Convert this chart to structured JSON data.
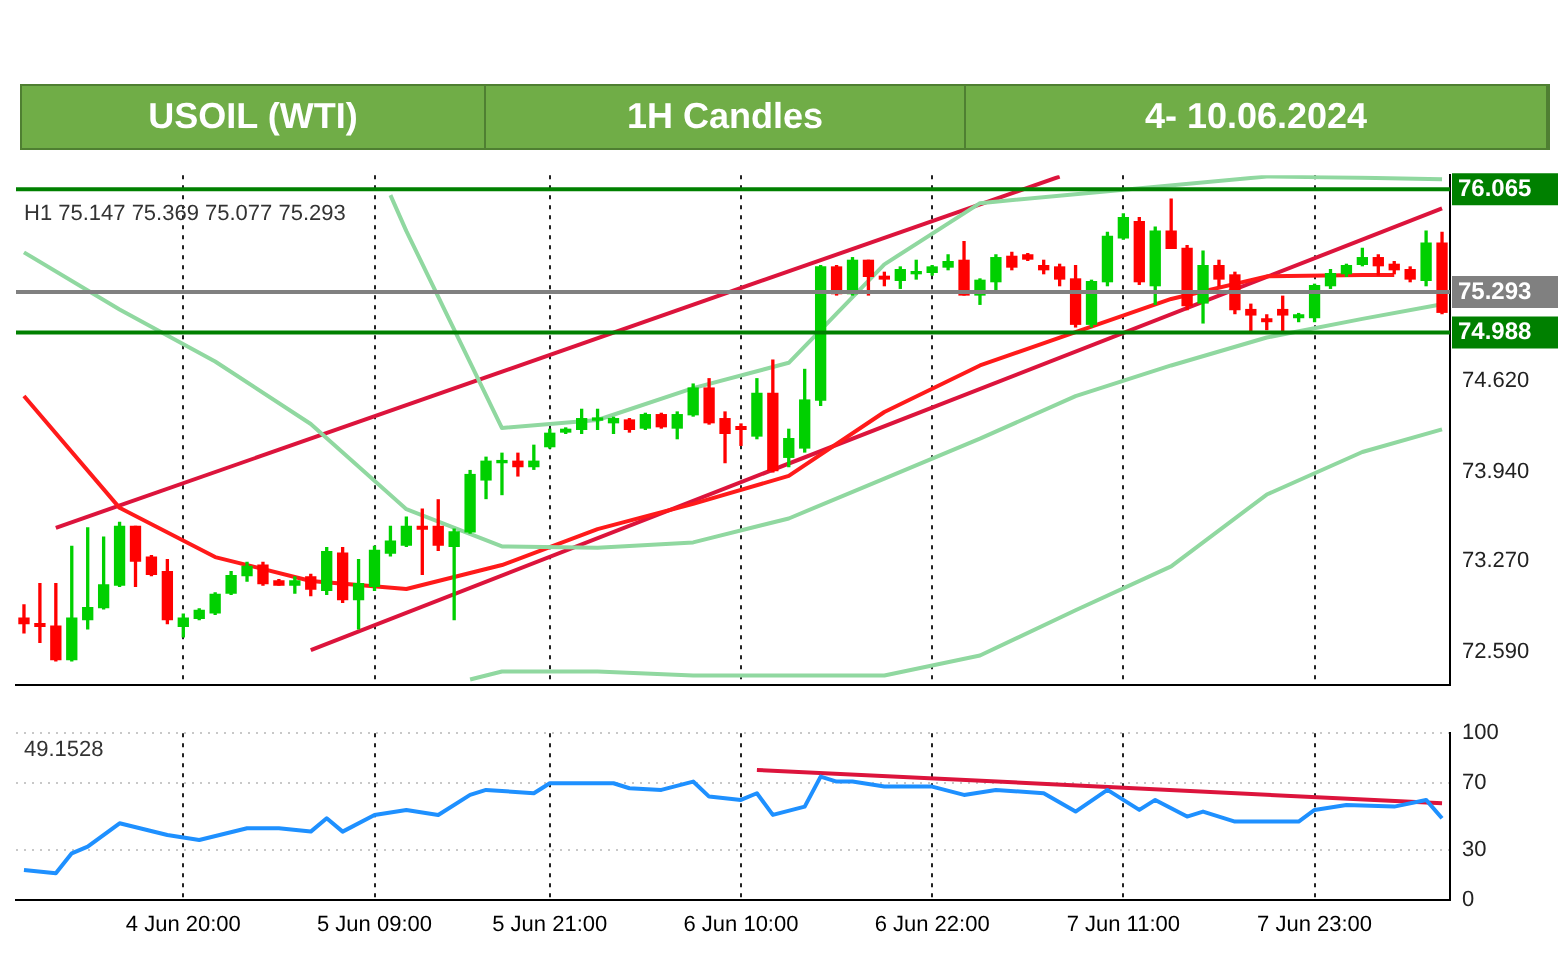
{
  "chart_data": [
    {
      "type": "candlestick",
      "title": "USOIL (WTI)",
      "subtitle": "1H Candles",
      "annotations": [
        "4- 10.06.2024",
        "H1 75.147 75.369 75.077 75.293"
      ],
      "categories": [
        null,
        null,
        null,
        null,
        null,
        null,
        null,
        null,
        null,
        null,
        null,
        null,
        null,
        null,
        null,
        null,
        null,
        null,
        null,
        null,
        null,
        null,
        null,
        null,
        null,
        null,
        null,
        null,
        null,
        null,
        null,
        null,
        null,
        null,
        null,
        null,
        null,
        null,
        null,
        null,
        null,
        null,
        null,
        null,
        null,
        null,
        null,
        null,
        null,
        null,
        null,
        null,
        null,
        null,
        null,
        null,
        null,
        null,
        null,
        null,
        null,
        null,
        null,
        null,
        null,
        null,
        null,
        null,
        null,
        null,
        null,
        null,
        null,
        null,
        null,
        null,
        null,
        null,
        null,
        null,
        null,
        null,
        null,
        null,
        null,
        null,
        null,
        null,
        null,
        null
      ],
      "ohlc": [
        [
          72.84,
          72.94,
          72.73,
          72.8
        ],
        [
          72.8,
          73.1,
          72.66,
          72.78
        ],
        [
          72.78,
          73.1,
          72.52,
          72.53
        ],
        [
          72.53,
          73.38,
          72.52,
          72.84
        ],
        [
          72.83,
          73.52,
          72.76,
          72.92
        ],
        [
          72.92,
          73.45,
          72.91,
          73.09
        ],
        [
          73.09,
          73.56,
          73.08,
          73.53
        ],
        [
          73.53,
          73.53,
          73.08,
          73.27
        ],
        [
          73.3,
          73.31,
          73.16,
          73.17
        ],
        [
          73.19,
          73.28,
          72.8,
          72.83
        ],
        [
          72.78,
          72.87,
          72.7,
          72.84
        ],
        [
          72.84,
          72.91,
          72.83,
          72.9
        ],
        [
          72.88,
          73.03,
          72.87,
          73.02
        ],
        [
          73.03,
          73.19,
          73.02,
          73.16
        ],
        [
          73.16,
          73.26,
          73.12,
          73.23
        ],
        [
          73.24,
          73.26,
          73.09,
          73.1
        ],
        [
          73.12,
          73.13,
          73.09,
          73.09
        ],
        [
          73.09,
          73.15,
          73.03,
          73.12
        ],
        [
          73.15,
          73.17,
          73.01,
          73.06
        ],
        [
          73.05,
          73.37,
          73.02,
          73.34
        ],
        [
          73.33,
          73.37,
          72.96,
          72.98
        ],
        [
          72.98,
          73.28,
          72.76,
          73.1
        ],
        [
          73.08,
          73.38,
          73.05,
          73.35
        ],
        [
          73.33,
          73.53,
          73.31,
          73.42
        ],
        [
          73.39,
          73.6,
          73.38,
          73.53
        ],
        [
          73.53,
          73.66,
          73.17,
          73.51
        ],
        [
          73.53,
          73.73,
          73.35,
          73.39
        ],
        [
          73.38,
          73.51,
          72.83,
          73.49
        ],
        [
          73.49,
          73.95,
          73.48,
          73.92
        ],
        [
          73.88,
          74.05,
          73.74,
          74.02
        ],
        [
          74.01,
          74.08,
          73.77,
          74.02
        ],
        [
          74.02,
          74.08,
          73.91,
          73.98
        ],
        [
          73.98,
          74.14,
          73.96,
          74.02
        ],
        [
          74.13,
          74.26,
          74.12,
          74.23
        ],
        [
          74.24,
          74.27,
          74.23,
          74.26
        ],
        [
          74.26,
          74.41,
          74.23,
          74.34
        ],
        [
          74.33,
          74.41,
          74.26,
          74.34
        ],
        [
          74.31,
          74.35,
          74.23,
          74.34
        ],
        [
          74.33,
          74.34,
          74.24,
          74.26
        ],
        [
          74.27,
          74.38,
          74.26,
          74.37
        ],
        [
          74.37,
          74.38,
          74.27,
          74.28
        ],
        [
          74.27,
          74.39,
          74.19,
          74.37
        ],
        [
          74.37,
          74.6,
          74.36,
          74.57
        ],
        [
          74.57,
          74.64,
          74.3,
          74.31
        ],
        [
          74.34,
          74.39,
          74.01,
          74.23
        ],
        [
          74.28,
          74.3,
          74.14,
          74.26
        ],
        [
          74.21,
          74.64,
          74.19,
          74.53
        ],
        [
          74.53,
          74.78,
          73.94,
          73.95
        ],
        [
          74.05,
          74.26,
          73.98,
          74.19
        ],
        [
          74.12,
          74.71,
          74.09,
          74.48
        ],
        [
          74.48,
          75.49,
          74.44,
          75.48
        ],
        [
          75.48,
          75.49,
          75.27,
          75.28
        ],
        [
          75.28,
          75.55,
          75.27,
          75.53
        ],
        [
          75.53,
          75.53,
          75.27,
          75.41
        ],
        [
          75.41,
          75.44,
          75.34,
          75.39
        ],
        [
          75.38,
          75.48,
          75.32,
          75.46
        ],
        [
          75.43,
          75.53,
          75.39,
          75.44
        ],
        [
          75.44,
          75.49,
          75.42,
          75.48
        ],
        [
          75.48,
          75.57,
          75.46,
          75.52
        ],
        [
          75.53,
          75.67,
          75.27,
          75.27
        ],
        [
          75.27,
          75.39,
          75.2,
          75.38
        ],
        [
          75.37,
          75.57,
          75.3,
          75.55
        ],
        [
          75.56,
          75.59,
          75.46,
          75.48
        ],
        [
          75.57,
          75.58,
          75.53,
          75.54
        ],
        [
          75.49,
          75.53,
          75.43,
          75.46
        ],
        [
          75.48,
          75.5,
          75.34,
          75.39
        ],
        [
          75.39,
          75.49,
          75.03,
          75.05
        ],
        [
          75.05,
          75.38,
          75.03,
          75.37
        ],
        [
          75.37,
          75.74,
          75.34,
          75.71
        ],
        [
          75.7,
          75.88,
          75.69,
          75.85
        ],
        [
          75.82,
          75.85,
          75.35,
          75.37
        ],
        [
          75.34,
          75.78,
          75.2,
          75.75
        ],
        [
          75.75,
          75.99,
          75.62,
          75.62
        ],
        [
          75.62,
          75.64,
          75.16,
          75.19
        ],
        [
          75.21,
          75.6,
          75.06,
          75.49
        ],
        [
          75.49,
          75.53,
          75.34,
          75.39
        ],
        [
          75.42,
          75.44,
          75.13,
          75.16
        ],
        [
          75.16,
          75.2,
          74.99,
          75.12
        ],
        [
          75.09,
          75.12,
          75.01,
          75.07
        ],
        [
          75.16,
          75.26,
          74.99,
          75.12
        ],
        [
          75.1,
          75.13,
          75.07,
          75.12
        ],
        [
          75.1,
          75.35,
          75.07,
          75.34
        ],
        [
          75.34,
          75.46,
          75.32,
          75.43
        ],
        [
          75.43,
          75.5,
          75.41,
          75.49
        ],
        [
          75.5,
          75.62,
          75.49,
          75.55
        ],
        [
          75.55,
          75.57,
          75.42,
          75.49
        ],
        [
          75.5,
          75.52,
          75.43,
          75.46
        ],
        [
          75.46,
          75.48,
          75.37,
          75.39
        ],
        [
          75.38,
          75.75,
          75.34,
          75.66
        ],
        [
          75.66,
          75.74,
          75.13,
          75.14
        ]
      ],
      "series": [
        {
          "type": "line",
          "color": "#90d8a0",
          "values": [
            75.59,
            null,
            null,
            null,
            null,
            null,
            75.16,
            null,
            null,
            null,
            null,
            null,
            74.77,
            null,
            null,
            null,
            null,
            null,
            74.3,
            null,
            null,
            null,
            null,
            null,
            73.66,
            null,
            null,
            null,
            null,
            null,
            73.38,
            null,
            null,
            null,
            null,
            null,
            73.37,
            null,
            null,
            null,
            null,
            null,
            73.41,
            null,
            null,
            null,
            null,
            null,
            73.59,
            null,
            null,
            null,
            null,
            null,
            73.89,
            null,
            null,
            null,
            null,
            null,
            74.19,
            null,
            null,
            null,
            null,
            null,
            74.51,
            null,
            null,
            null,
            null,
            null,
            74.74,
            null,
            null,
            null,
            null,
            null,
            74.95,
            null,
            null,
            null,
            null,
            null,
            75.09,
            null,
            null,
            null,
            null,
            75.2
          ]
        },
        {
          "type": "line",
          "color": "#90d8a0",
          "values": [
            null,
            null,
            null,
            null,
            null,
            null,
            null,
            null,
            null,
            null,
            null,
            null,
            null,
            null,
            null,
            null,
            null,
            null,
            null,
            null,
            null,
            null,
            null,
            76.02,
            75.75,
            null,
            null,
            null,
            null,
            null,
            74.27,
            null,
            null,
            null,
            null,
            null,
            74.33,
            null,
            null,
            null,
            null,
            null,
            74.57,
            null,
            null,
            null,
            null,
            null,
            74.76,
            null,
            null,
            null,
            null,
            null,
            75.5,
            null,
            null,
            null,
            null,
            null,
            75.96,
            null,
            null,
            null,
            null,
            null,
            null,
            null,
            null,
            null,
            null,
            null,
            null,
            null,
            null,
            null,
            null,
            null,
            76.16,
            null,
            null,
            null,
            null,
            null,
            76.15,
            null,
            null,
            null,
            null,
            76.14
          ]
        },
        {
          "type": "line",
          "color": "#90d8a0",
          "values": [
            null,
            null,
            null,
            null,
            null,
            null,
            null,
            null,
            null,
            null,
            null,
            null,
            null,
            null,
            null,
            null,
            null,
            null,
            null,
            null,
            null,
            null,
            null,
            null,
            null,
            null,
            null,
            null,
            72.38,
            null,
            72.44,
            null,
            null,
            null,
            null,
            null,
            72.44,
            null,
            null,
            null,
            null,
            null,
            72.41,
            null,
            null,
            null,
            null,
            null,
            72.41,
            null,
            null,
            null,
            null,
            null,
            72.41,
            null,
            null,
            null,
            null,
            null,
            72.56,
            null,
            null,
            null,
            null,
            null,
            72.9,
            null,
            null,
            null,
            null,
            null,
            73.23,
            null,
            null,
            null,
            null,
            null,
            73.77,
            null,
            null,
            null,
            null,
            null,
            74.09,
            null,
            null,
            null,
            null,
            74.26
          ]
        },
        {
          "type": "line",
          "color": "#ff1a1a",
          "values": [
            74.51,
            null,
            null,
            null,
            null,
            null,
            73.67,
            null,
            null,
            null,
            null,
            null,
            73.3,
            null,
            null,
            null,
            null,
            null,
            73.12,
            null,
            null,
            null,
            null,
            null,
            73.06,
            null,
            null,
            null,
            null,
            null,
            73.24,
            null,
            null,
            null,
            null,
            null,
            73.51,
            null,
            null,
            null,
            null,
            null,
            73.7,
            null,
            null,
            null,
            null,
            null,
            73.91,
            null,
            null,
            null,
            null,
            null,
            74.39,
            null,
            null,
            null,
            null,
            null,
            74.74,
            null,
            null,
            null,
            null,
            null,
            74.99,
            null,
            null,
            null,
            null,
            null,
            75.24,
            null,
            null,
            null,
            null,
            null,
            75.41,
            null,
            null,
            null,
            null,
            null,
            75.42,
            null,
            75.42,
            null,
            null,
            null
          ]
        },
        {
          "type": "line",
          "color": "#dc143c",
          "values": [
            null,
            null,
            73.52,
            null,
            null,
            null,
            null,
            null,
            null,
            null,
            null,
            null,
            null,
            null,
            null,
            null,
            null,
            null,
            null,
            null,
            null,
            null,
            null,
            null,
            null,
            null,
            null,
            null,
            null,
            null,
            null,
            null,
            null,
            null,
            null,
            null,
            null,
            null,
            null,
            null,
            null,
            null,
            null,
            null,
            null,
            null,
            null,
            null,
            null,
            null,
            null,
            null,
            null,
            null,
            null,
            null,
            null,
            null,
            null,
            null,
            null,
            null,
            null,
            null,
            null,
            76.16,
            null,
            null,
            null,
            null,
            null,
            null,
            null,
            null,
            null,
            null,
            null,
            null,
            null,
            null,
            null,
            null,
            null,
            null,
            null,
            null,
            null,
            null,
            null,
            null
          ]
        },
        {
          "type": "line",
          "color": "#dc143c",
          "values": [
            null,
            null,
            null,
            null,
            null,
            null,
            null,
            null,
            null,
            null,
            null,
            null,
            null,
            null,
            null,
            null,
            null,
            null,
            72.6,
            null,
            null,
            null,
            null,
            null,
            null,
            null,
            null,
            null,
            null,
            null,
            null,
            null,
            null,
            null,
            null,
            null,
            null,
            null,
            null,
            null,
            null,
            null,
            null,
            null,
            null,
            null,
            null,
            null,
            null,
            null,
            null,
            null,
            null,
            null,
            null,
            null,
            null,
            null,
            null,
            null,
            null,
            null,
            null,
            null,
            null,
            null,
            null,
            null,
            null,
            null,
            null,
            null,
            null,
            null,
            null,
            null,
            null,
            null,
            null,
            null,
            null,
            null,
            null,
            null,
            null,
            null,
            null,
            null,
            null,
            75.92
          ]
        }
      ],
      "ylim": [
        72.34,
        76.17
      ],
      "yticks": [
        {
          "value": 72.59,
          "label": "72.590"
        },
        {
          "value": 73.27,
          "label": "73.270"
        },
        {
          "value": 73.94,
          "label": "73.940"
        },
        {
          "value": 74.62,
          "label": "74.620"
        }
      ],
      "ref_lines": [
        {
          "axis": "y",
          "value": 76.065,
          "label": "76.065",
          "color": "#008000"
        },
        {
          "axis": "y",
          "value": 74.988,
          "label": "74.988",
          "color": "#008000"
        },
        {
          "axis": "y",
          "value": 75.293,
          "label": "75.293",
          "color": "#808080"
        }
      ],
      "grid": "x",
      "legend": false,
      "tick_labels": "y"
    },
    {
      "type": "line",
      "annotations": [
        "49.1528"
      ],
      "categories": [
        null,
        null,
        null,
        null,
        null,
        null,
        null,
        null,
        null,
        null,
        "4 Jun 20:00",
        null,
        null,
        null,
        null,
        null,
        null,
        null,
        null,
        null,
        null,
        null,
        "5 Jun 09:00",
        null,
        null,
        null,
        null,
        null,
        null,
        null,
        null,
        null,
        null,
        "5 Jun 21:00",
        null,
        null,
        null,
        null,
        null,
        null,
        null,
        null,
        null,
        null,
        null,
        "6 Jun 10:00",
        null,
        null,
        null,
        null,
        null,
        null,
        null,
        null,
        null,
        null,
        null,
        "6 Jun 22:00",
        null,
        null,
        null,
        null,
        null,
        null,
        null,
        null,
        null,
        null,
        null,
        "7 Jun 11:00",
        null,
        null,
        null,
        null,
        null,
        null,
        null,
        null,
        null,
        null,
        null,
        "7 Jun 23:00",
        null,
        null,
        null,
        null,
        null,
        null,
        null,
        null
      ],
      "series": [
        {
          "color": "#1e90ff",
          "values": [
            18,
            null,
            16,
            28,
            32,
            null,
            46,
            null,
            null,
            39,
            null,
            36,
            null,
            null,
            43,
            null,
            43,
            null,
            41,
            49,
            41,
            null,
            51,
            null,
            54,
            null,
            51,
            null,
            63,
            66,
            null,
            null,
            64,
            70,
            null,
            null,
            null,
            70,
            67,
            null,
            66,
            null,
            71,
            62,
            null,
            60,
            64,
            51,
            null,
            56,
            74,
            71,
            71,
            null,
            68,
            null,
            null,
            68,
            null,
            63,
            null,
            66,
            null,
            null,
            64,
            null,
            53,
            null,
            66,
            null,
            54,
            60,
            null,
            50,
            53,
            null,
            47,
            null,
            null,
            null,
            47,
            54,
            null,
            57,
            null,
            null,
            56,
            null,
            60,
            49
          ]
        },
        {
          "color": "#dc143c",
          "values": [
            null,
            null,
            null,
            null,
            null,
            null,
            null,
            null,
            null,
            null,
            null,
            null,
            null,
            null,
            null,
            null,
            null,
            null,
            null,
            null,
            null,
            null,
            null,
            null,
            null,
            null,
            null,
            null,
            null,
            null,
            null,
            null,
            null,
            null,
            null,
            null,
            null,
            null,
            null,
            null,
            null,
            null,
            null,
            null,
            null,
            null,
            78,
            null,
            null,
            null,
            null,
            null,
            null,
            null,
            null,
            null,
            null,
            null,
            null,
            null,
            null,
            null,
            null,
            null,
            null,
            null,
            null,
            null,
            null,
            null,
            null,
            null,
            null,
            null,
            null,
            null,
            null,
            null,
            null,
            null,
            null,
            null,
            null,
            null,
            null,
            null,
            null,
            null,
            null,
            58
          ]
        }
      ],
      "ylim": [
        0,
        100
      ],
      "yticks": [
        0,
        30,
        70,
        100
      ],
      "grid": true,
      "legend": false
    }
  ]
}
